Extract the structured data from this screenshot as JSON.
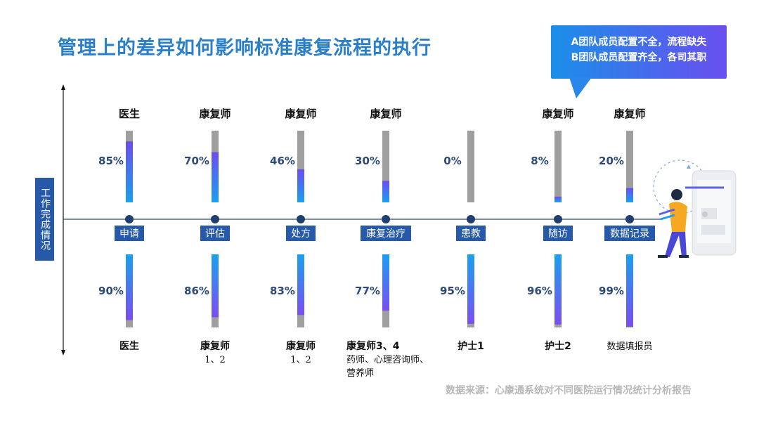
{
  "title": "管理上的差异如何影响标准康复流程的执行",
  "callout": {
    "line1": "A团队成员配置不全，流程缺失",
    "line2": "B团队成员配置齐全，各司其职"
  },
  "y_axis_label": "工作完成情况",
  "source": "数据来源：心康通系统对不同医院运行情况统计分析报告",
  "colors": {
    "title": "#2a7fc9",
    "bar_gray": "#9f9f9f",
    "bar_fill_top": "#6a4ef0",
    "bar_fill_bottom": "#1aa0ee",
    "category_box": "#2659a8",
    "axis_dot": "#1f3f6e"
  },
  "chart_data": {
    "type": "bar",
    "categories": [
      "申请",
      "评估",
      "处方",
      "康复治疗",
      "患教",
      "随访",
      "数据记录"
    ],
    "series": [
      {
        "name": "A",
        "values": [
          85,
          70,
          46,
          30,
          0,
          8,
          20
        ],
        "value_labels": [
          "85%",
          "70%",
          "46%",
          "30%",
          "0%",
          "8%",
          "20%"
        ],
        "roles": [
          "医生",
          "康复师",
          "康复师",
          "康复师",
          "",
          "康复师",
          "康复师"
        ]
      },
      {
        "name": "B",
        "values": [
          90,
          86,
          83,
          77,
          95,
          96,
          99
        ],
        "value_labels": [
          "90%",
          "86%",
          "83%",
          "77%",
          "95%",
          "96%",
          "99%"
        ],
        "roles": [
          [
            "医生"
          ],
          [
            "康复师",
            "1、2"
          ],
          [
            "康复师",
            "1、2"
          ],
          [
            "康复师3、4",
            "药师、心理咨询师、",
            "营养师"
          ],
          [
            "护士1"
          ],
          [
            "护士2"
          ],
          [
            "数据填报员"
          ]
        ]
      }
    ],
    "ylim": [
      0,
      100
    ],
    "unit": "%"
  }
}
